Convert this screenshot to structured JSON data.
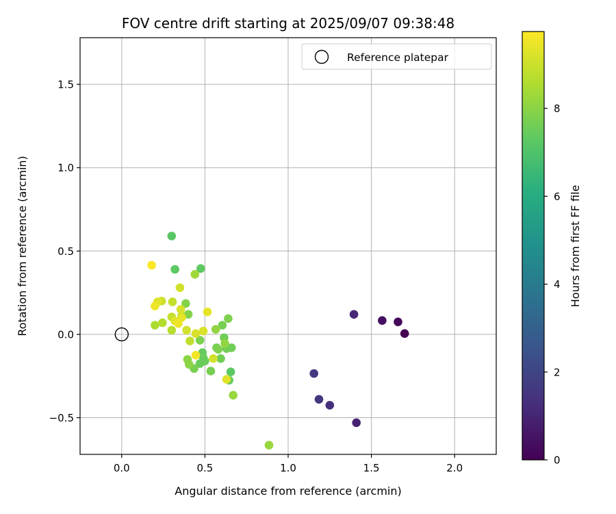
{
  "chart_data": {
    "type": "scatter",
    "title": "FOV centre drift starting at 2025/09/07 09:38:48",
    "xlabel": "Angular distance from reference (arcmin)",
    "ylabel": "Rotation from reference (arcmin)",
    "xlim": [
      -0.25,
      2.25
    ],
    "ylim": [
      -0.72,
      1.78
    ],
    "xticks": [
      0.0,
      0.5,
      1.0,
      1.5,
      2.0
    ],
    "xtick_labels": [
      "0.0",
      "0.5",
      "1.0",
      "1.5",
      "2.0"
    ],
    "yticks": [
      -0.5,
      0.0,
      0.5,
      1.0,
      1.5
    ],
    "ytick_labels": [
      "−0.5",
      "0.0",
      "0.5",
      "1.0",
      "1.5"
    ],
    "grid": true,
    "legend": {
      "position": "top-right",
      "label": "Reference platepar"
    },
    "reference_point": {
      "x": 0.0,
      "y": 0.0
    },
    "colorbar": {
      "label": "Hours from first FF file",
      "range": [
        0,
        9.75
      ],
      "ticks": [
        0,
        2,
        4,
        6,
        8
      ],
      "tick_labels": [
        "0",
        "2",
        "4",
        "6",
        "8"
      ],
      "colormap": "viridis"
    },
    "points": [
      {
        "x": 1.7,
        "y": 0.005,
        "h": 0.0
      },
      {
        "x": 1.66,
        "y": 0.075,
        "h": 0.2
      },
      {
        "x": 1.565,
        "y": 0.083,
        "h": 0.4
      },
      {
        "x": 1.41,
        "y": -0.53,
        "h": 0.9
      },
      {
        "x": 1.395,
        "y": 0.12,
        "h": 1.1
      },
      {
        "x": 1.25,
        "y": -0.425,
        "h": 1.3
      },
      {
        "x": 1.185,
        "y": -0.39,
        "h": 1.5
      },
      {
        "x": 1.155,
        "y": -0.235,
        "h": 1.6
      },
      {
        "x": 0.3,
        "y": 0.59,
        "h": 7.2
      },
      {
        "x": 0.32,
        "y": 0.39,
        "h": 7.3
      },
      {
        "x": 0.475,
        "y": 0.395,
        "h": 7.3
      },
      {
        "x": 0.655,
        "y": -0.225,
        "h": 7.3
      },
      {
        "x": 0.645,
        "y": -0.275,
        "h": 7.4
      },
      {
        "x": 0.485,
        "y": -0.11,
        "h": 7.4
      },
      {
        "x": 0.49,
        "y": -0.14,
        "h": 7.5
      },
      {
        "x": 0.5,
        "y": -0.16,
        "h": 7.5
      },
      {
        "x": 0.47,
        "y": -0.175,
        "h": 7.5
      },
      {
        "x": 0.595,
        "y": -0.145,
        "h": 7.6
      },
      {
        "x": 0.615,
        "y": -0.02,
        "h": 7.6
      },
      {
        "x": 0.63,
        "y": -0.085,
        "h": 7.6
      },
      {
        "x": 0.66,
        "y": -0.08,
        "h": 7.6
      },
      {
        "x": 0.57,
        "y": -0.08,
        "h": 7.7
      },
      {
        "x": 0.605,
        "y": 0.055,
        "h": 7.7
      },
      {
        "x": 0.535,
        "y": -0.22,
        "h": 7.7
      },
      {
        "x": 0.435,
        "y": -0.205,
        "h": 7.7
      },
      {
        "x": 0.58,
        "y": -0.09,
        "h": 7.8
      },
      {
        "x": 0.64,
        "y": 0.095,
        "h": 7.8
      },
      {
        "x": 0.47,
        "y": -0.035,
        "h": 7.8
      },
      {
        "x": 0.4,
        "y": 0.12,
        "h": 7.9
      },
      {
        "x": 0.385,
        "y": 0.185,
        "h": 7.9
      },
      {
        "x": 0.405,
        "y": -0.18,
        "h": 8.0
      },
      {
        "x": 0.395,
        "y": -0.15,
        "h": 8.0
      },
      {
        "x": 0.62,
        "y": -0.055,
        "h": 8.1
      },
      {
        "x": 0.565,
        "y": 0.03,
        "h": 8.1
      },
      {
        "x": 0.67,
        "y": -0.365,
        "h": 8.2
      },
      {
        "x": 0.885,
        "y": -0.665,
        "h": 8.2
      },
      {
        "x": 0.44,
        "y": 0.36,
        "h": 8.3
      },
      {
        "x": 0.36,
        "y": 0.11,
        "h": 8.4
      },
      {
        "x": 0.2,
        "y": 0.055,
        "h": 8.5
      },
      {
        "x": 0.245,
        "y": 0.07,
        "h": 8.6
      },
      {
        "x": 0.3,
        "y": 0.025,
        "h": 8.7
      },
      {
        "x": 0.41,
        "y": -0.04,
        "h": 8.8
      },
      {
        "x": 0.3,
        "y": 0.105,
        "h": 8.9
      },
      {
        "x": 0.305,
        "y": 0.195,
        "h": 8.9
      },
      {
        "x": 0.24,
        "y": 0.2,
        "h": 9.0
      },
      {
        "x": 0.35,
        "y": 0.28,
        "h": 9.1
      },
      {
        "x": 0.55,
        "y": -0.145,
        "h": 9.1
      },
      {
        "x": 0.39,
        "y": 0.025,
        "h": 9.1
      },
      {
        "x": 0.445,
        "y": 0.005,
        "h": 9.2
      },
      {
        "x": 0.49,
        "y": 0.02,
        "h": 9.2
      },
      {
        "x": 0.355,
        "y": 0.15,
        "h": 9.2
      },
      {
        "x": 0.63,
        "y": -0.27,
        "h": 9.3
      },
      {
        "x": 0.32,
        "y": 0.08,
        "h": 9.3
      },
      {
        "x": 0.215,
        "y": 0.195,
        "h": 9.3
      },
      {
        "x": 0.515,
        "y": 0.135,
        "h": 9.4
      },
      {
        "x": 0.36,
        "y": 0.1,
        "h": 9.4
      },
      {
        "x": 0.2,
        "y": 0.17,
        "h": 9.5
      },
      {
        "x": 0.34,
        "y": 0.065,
        "h": 9.5
      },
      {
        "x": 0.445,
        "y": -0.125,
        "h": 9.6
      },
      {
        "x": 0.18,
        "y": 0.415,
        "h": 9.7
      }
    ]
  }
}
